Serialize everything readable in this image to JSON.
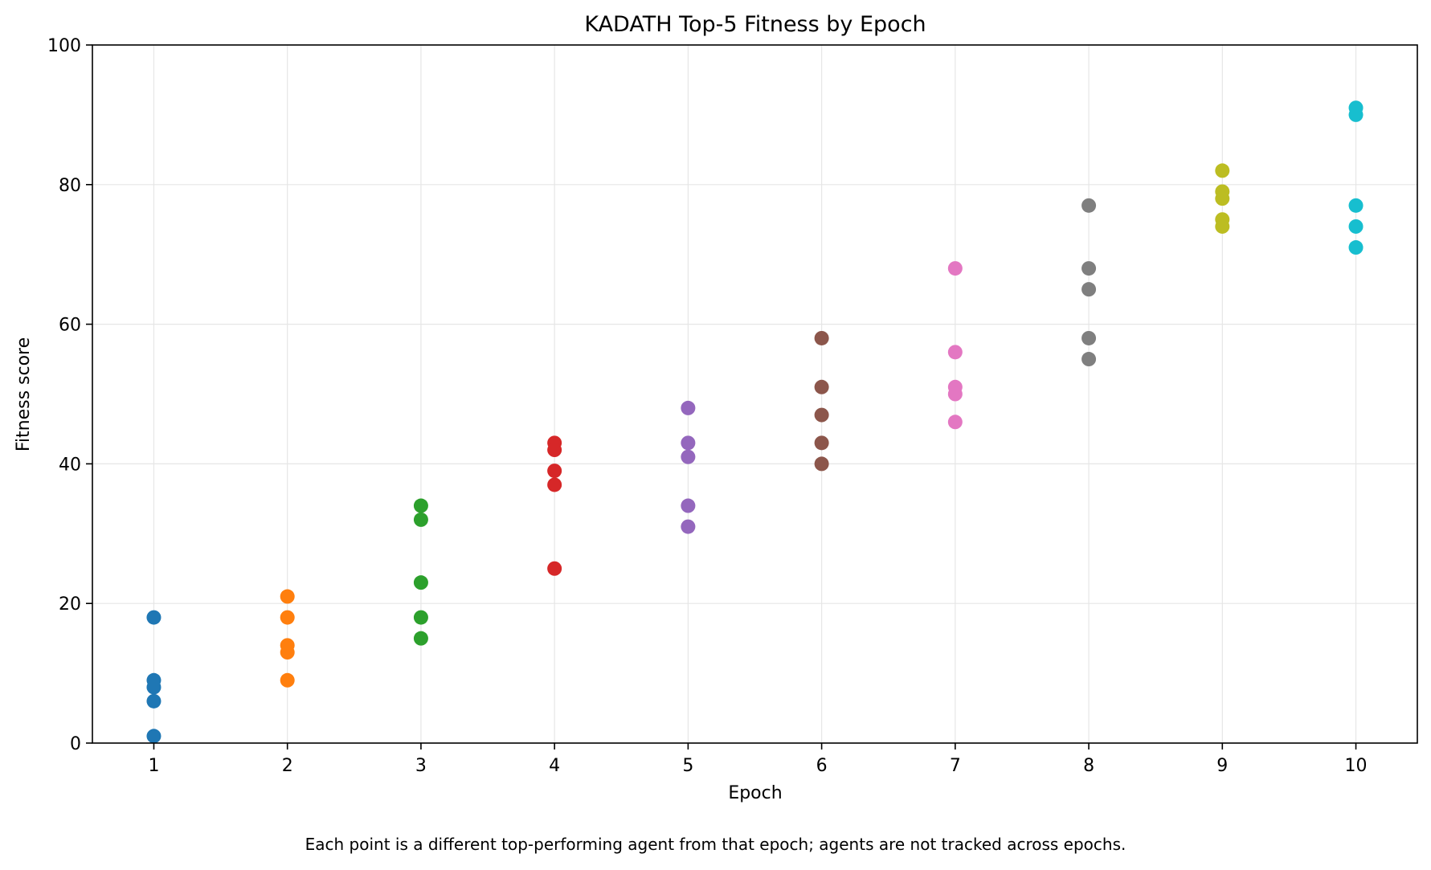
{
  "chart_data": {
    "type": "scatter",
    "title": "KADATH Top-5 Fitness by Epoch",
    "xlabel": "Epoch",
    "ylabel": "Fitness score",
    "xlim": [
      0.54,
      10.46
    ],
    "ylim": [
      0,
      100
    ],
    "xticks": [
      1,
      2,
      3,
      4,
      5,
      6,
      7,
      8,
      9,
      10
    ],
    "xtick_labels": [
      "1",
      "2",
      "3",
      "4",
      "5",
      "6",
      "7",
      "8",
      "9",
      "10"
    ],
    "yticks": [
      0,
      20,
      40,
      60,
      80,
      100
    ],
    "ytick_labels": [
      "0",
      "20",
      "40",
      "60",
      "80",
      "100"
    ],
    "grid": true,
    "legend": "none",
    "series": [
      {
        "x": 1,
        "color": "#1f77b4",
        "values": [
          18,
          9,
          8,
          6,
          1
        ]
      },
      {
        "x": 2,
        "color": "#ff7f0e",
        "values": [
          21,
          18,
          14,
          13,
          9
        ]
      },
      {
        "x": 3,
        "color": "#2ca02c",
        "values": [
          34,
          32,
          23,
          18,
          15
        ]
      },
      {
        "x": 4,
        "color": "#d62728",
        "values": [
          43,
          42,
          39,
          37,
          25
        ]
      },
      {
        "x": 5,
        "color": "#9467bd",
        "values": [
          48,
          43,
          41,
          34,
          31
        ]
      },
      {
        "x": 6,
        "color": "#8c564b",
        "values": [
          58,
          51,
          47,
          43,
          40
        ]
      },
      {
        "x": 7,
        "color": "#e377c2",
        "values": [
          68,
          56,
          51,
          50,
          46
        ]
      },
      {
        "x": 8,
        "color": "#7f7f7f",
        "values": [
          77,
          68,
          65,
          58,
          55
        ]
      },
      {
        "x": 9,
        "color": "#bcbd22",
        "values": [
          82,
          79,
          78,
          75,
          74
        ]
      },
      {
        "x": 10,
        "color": "#17becf",
        "values": [
          91,
          90,
          77,
          74,
          71
        ]
      }
    ]
  },
  "caption": "Each point is a different top-performing agent from that epoch; agents are not tracked across epochs."
}
